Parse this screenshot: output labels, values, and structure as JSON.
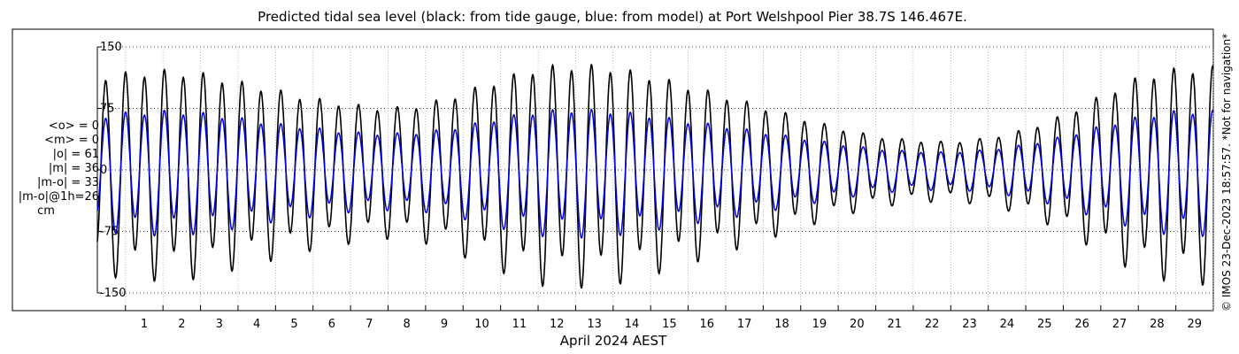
{
  "chart_data": {
    "type": "line",
    "title": "Predicted tidal sea level (black: from tide gauge, blue: from model) at Port Welshpool Pier 38.7S 146.467E.",
    "xlabel": "April 2024 AEST",
    "ylabel": "",
    "x_start_day": 0.25,
    "x_end_day": 30.0,
    "xlim_days": [
      0.25,
      30.0
    ],
    "ylim": [
      -150,
      150
    ],
    "x_ticks": [
      "1",
      "2",
      "3",
      "4",
      "5",
      "6",
      "7",
      "8",
      "9",
      "10",
      "11",
      "12",
      "13",
      "14",
      "15",
      "16",
      "17",
      "18",
      "19",
      "20",
      "21",
      "22",
      "23",
      "24",
      "25",
      "26",
      "27",
      "28",
      "29"
    ],
    "y_ticks": [
      {
        "value": 150,
        "label": "150"
      },
      {
        "value": 75,
        "label": "75"
      },
      {
        "value": 0,
        "label": "0"
      },
      {
        "value": -75,
        "label": "-75"
      },
      {
        "value": -150,
        "label": "-150"
      }
    ],
    "grid": {
      "x": true,
      "y": true,
      "style": "dotted"
    },
    "series": [
      {
        "role": "tide gauge (black)",
        "color": "#000000",
        "tidal_period_hours": 12.42,
        "daily_envelope": {
          "days": [
            0,
            1,
            2,
            3,
            4,
            5,
            6,
            7,
            8,
            9,
            10,
            11,
            12,
            13,
            14,
            15,
            16,
            17,
            18,
            19,
            20,
            21,
            22,
            23,
            24,
            25,
            26,
            27,
            28,
            29,
            30
          ],
          "amplitude": [
            110,
            115,
            118,
            115,
            105,
            95,
            85,
            78,
            73,
            78,
            92,
            108,
            122,
            125,
            122,
            112,
            100,
            88,
            75,
            62,
            50,
            40,
            35,
            33,
            38,
            48,
            65,
            88,
            110,
            120,
            122
          ]
        },
        "daily_inequality": 0.16
      },
      {
        "role": "model (blue)",
        "color": "#0000dd",
        "tidal_period_hours": 12.42,
        "daily_envelope": {
          "days": [
            0,
            1,
            2,
            3,
            4,
            5,
            6,
            7,
            8,
            9,
            10,
            11,
            12,
            13,
            14,
            15,
            16,
            17,
            18,
            19,
            20,
            21,
            22,
            23,
            24,
            25,
            26,
            27,
            28,
            29,
            30
          ],
          "amplitude": [
            62,
            68,
            70,
            68,
            62,
            55,
            50,
            45,
            43,
            45,
            52,
            62,
            70,
            72,
            70,
            65,
            58,
            52,
            45,
            38,
            31,
            25,
            22,
            21,
            24,
            30,
            40,
            52,
            63,
            70,
            70
          ]
        },
        "daily_inequality": 0.16
      }
    ]
  },
  "stats": {
    "lines": [
      "<o> = 0",
      "<m> = 0",
      "|o| = 61",
      "|m| = 36",
      "|m-o| = 33",
      "|m-o|@1h=26"
    ],
    "unit": "cm"
  },
  "credit": "© IMOS 23-Dec-2023 18:57:57. *Not for navigation*"
}
